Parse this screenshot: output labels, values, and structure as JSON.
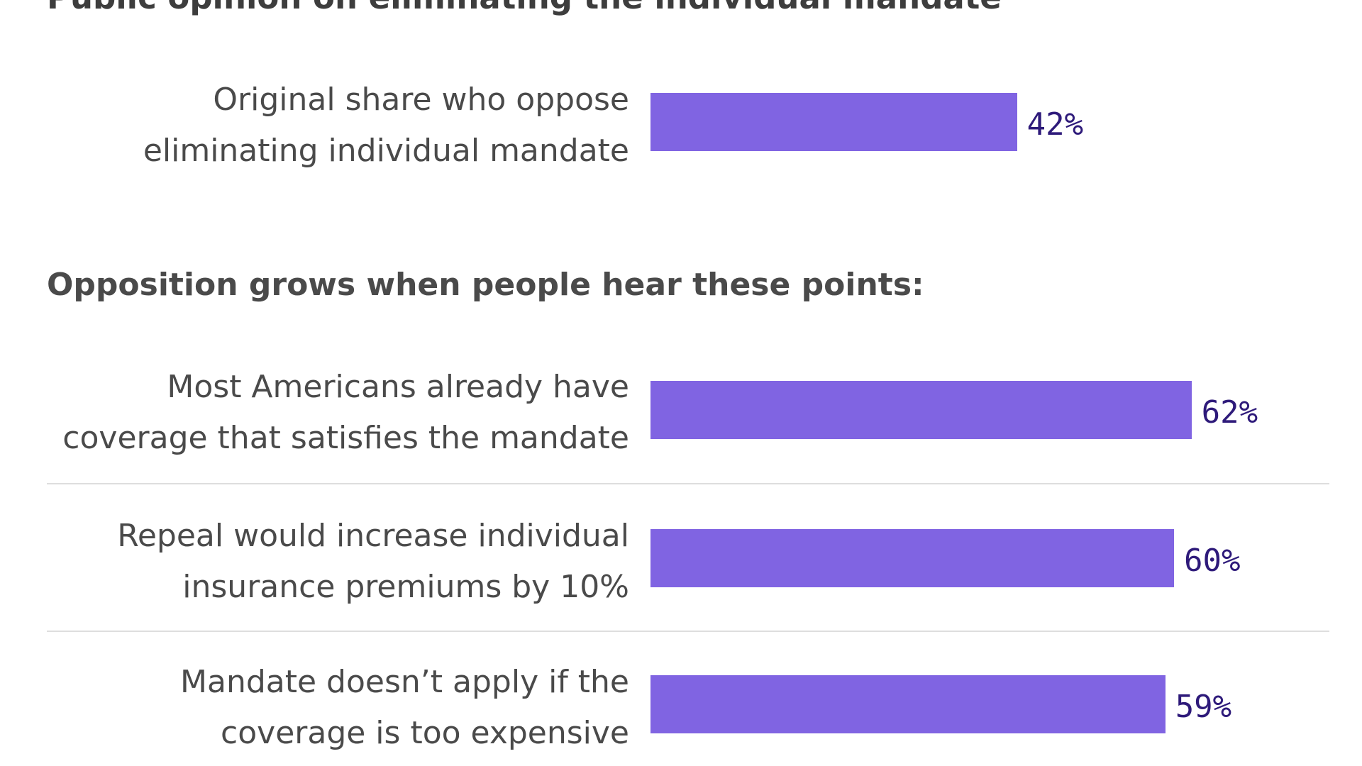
{
  "chart_data": [
    {
      "type": "bar",
      "orientation": "horizontal",
      "title": "Public opinion on eliminating the individual mandate",
      "categories": [
        "Original share who oppose\neliminating individual mandate"
      ],
      "values": [
        42
      ],
      "value_labels": [
        "42%"
      ],
      "xlim": [
        0,
        100
      ],
      "grid": false,
      "bar_color": "#8064e2",
      "value_label_color": "#2e1a7a"
    },
    {
      "type": "bar",
      "orientation": "horizontal",
      "title": "Opposition grows when people hear these points:",
      "categories": [
        "Most Americans already have\ncoverage that satisfies the mandate",
        "Repeal would increase individual\ninsurance  premiums by 10%",
        "Mandate doesn’t apply if the\ncoverage is too expensive"
      ],
      "values": [
        62,
        60,
        59
      ],
      "value_labels": [
        "62%",
        "60%",
        "59%"
      ],
      "xlim": [
        0,
        100
      ],
      "grid": false,
      "bar_color": "#8064e2",
      "value_label_color": "#2e1a7a"
    }
  ]
}
